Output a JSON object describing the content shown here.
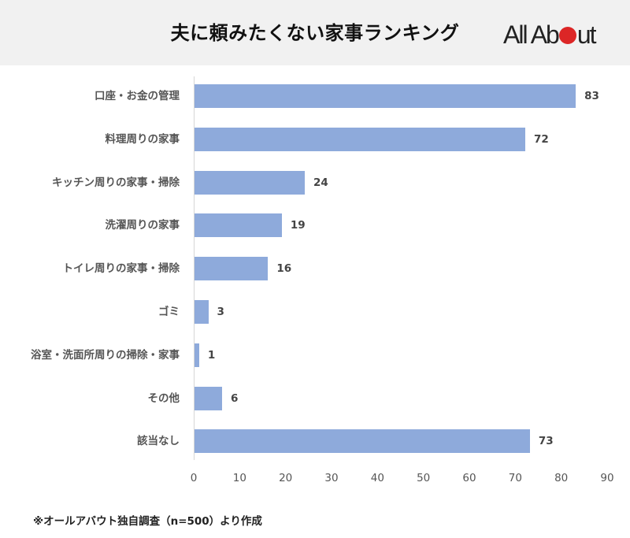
{
  "header": {
    "title": "夫に頼みたくない家事ランキング",
    "logo": {
      "prefix": "All Ab",
      "suffix": "ut",
      "dot_color": "#dc2626"
    }
  },
  "footnote": "※オールアバウト独自調査（n=500）より作成",
  "colors": {
    "bar": "#8eaadb",
    "header_bg": "#f1f1f1",
    "axis": "#d6d6d6"
  },
  "chart_data": {
    "type": "bar",
    "orientation": "horizontal",
    "title": "夫に頼みたくない家事ランキング",
    "categories": [
      "口座・お金の管理",
      "料理周りの家事",
      "キッチン周りの家事・掃除",
      "洗濯周りの家事",
      "トイレ周りの家事・掃除",
      "ゴミ",
      "浴室・洗面所周りの掃除・家事",
      "その他",
      "該当なし"
    ],
    "values": [
      83,
      72,
      24,
      19,
      16,
      3,
      1,
      6,
      73
    ],
    "value_labels": [
      "83",
      "72",
      "24",
      "19",
      "16",
      "3",
      "1",
      "6",
      "73"
    ],
    "xlabel": "",
    "ylabel": "",
    "xlim": [
      0,
      90
    ],
    "x_ticks": [
      "0",
      "10",
      "20",
      "30",
      "40",
      "50",
      "60",
      "70",
      "80",
      "90"
    ],
    "grid": false,
    "legend": null,
    "source_note": "※オールアバウト独自調査（n=500）より作成"
  }
}
